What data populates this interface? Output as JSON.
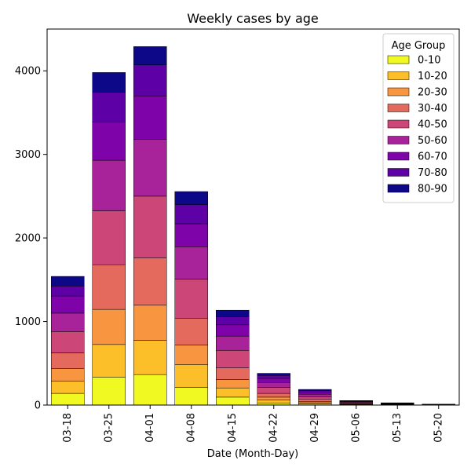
{
  "chart_data": {
    "type": "bar",
    "stacked": true,
    "title": "Weekly cases by age",
    "xlabel": "Date (Month-Day)",
    "ylabel": "",
    "ylim": [
      0,
      4500
    ],
    "yticks": [
      0,
      1000,
      2000,
      3000,
      4000
    ],
    "grid": false,
    "categories": [
      "03-18",
      "03-25",
      "04-01",
      "04-08",
      "04-15",
      "04-22",
      "04-29",
      "05-06",
      "05-13",
      "05-20"
    ],
    "legend": {
      "title": "Age Group",
      "placement": "top-right"
    },
    "series": [
      {
        "name": "0-10",
        "color": "#f0f921",
        "values": [
          140,
          335,
          365,
          210,
          95,
          25,
          12,
          4,
          2,
          1
        ]
      },
      {
        "name": "10-20",
        "color": "#fcbf2a",
        "values": [
          145,
          390,
          410,
          275,
          110,
          35,
          16,
          5,
          2,
          1
        ]
      },
      {
        "name": "20-30",
        "color": "#f89540",
        "values": [
          150,
          420,
          420,
          235,
          100,
          35,
          16,
          6,
          3,
          1
        ]
      },
      {
        "name": "30-40",
        "color": "#e46a5e",
        "values": [
          190,
          535,
          565,
          320,
          140,
          45,
          24,
          8,
          4,
          1
        ]
      },
      {
        "name": "40-50",
        "color": "#cc4778",
        "values": [
          255,
          645,
          740,
          465,
          210,
          70,
          32,
          10,
          5,
          2
        ]
      },
      {
        "name": "50-60",
        "color": "#a8239a",
        "values": [
          220,
          605,
          680,
          390,
          170,
          60,
          30,
          8,
          4,
          1
        ]
      },
      {
        "name": "60-70",
        "color": "#7e03a8",
        "values": [
          205,
          455,
          520,
          275,
          135,
          50,
          25,
          6,
          3,
          1
        ]
      },
      {
        "name": "70-80",
        "color": "#5d01a6",
        "values": [
          120,
          360,
          370,
          230,
          95,
          35,
          18,
          4,
          2,
          1
        ]
      },
      {
        "name": "80-90",
        "color": "#0d0887",
        "values": [
          115,
          235,
          220,
          155,
          80,
          25,
          14,
          3,
          2,
          1
        ]
      }
    ]
  }
}
